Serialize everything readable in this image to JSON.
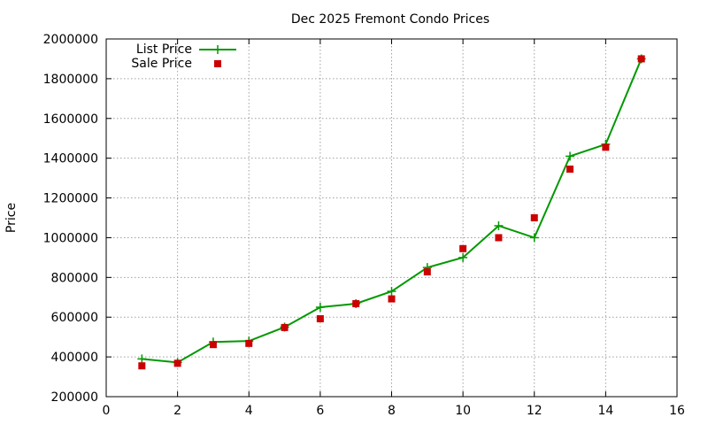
{
  "chart_data": {
    "type": "line",
    "title": "Dec 2025 Fremont Condo Prices",
    "xlabel": "",
    "ylabel": "Price",
    "xlim": [
      0,
      16
    ],
    "ylim": [
      200000,
      2000000
    ],
    "xticks": [
      "0",
      "2",
      "4",
      "6",
      "8",
      "10",
      "12",
      "14",
      "16"
    ],
    "yticks": [
      "200000",
      "400000",
      "600000",
      "800000",
      "1000000",
      "1200000",
      "1400000",
      "1600000",
      "1800000",
      "2000000"
    ],
    "grid": true,
    "legend_position": "top-left",
    "series": [
      {
        "name": "List Price",
        "style": "linespoints",
        "color": "#009900",
        "marker": "plus",
        "x": [
          1,
          2,
          3,
          4,
          5,
          6,
          7,
          8,
          9,
          10,
          11,
          12,
          13,
          14,
          15
        ],
        "values": [
          390000,
          372000,
          475000,
          480000,
          550000,
          650000,
          668000,
          730000,
          850000,
          900000,
          1060000,
          1000000,
          1410000,
          1470000,
          1900000
        ]
      },
      {
        "name": "Sale Price",
        "style": "points",
        "color": "#cc0000",
        "marker": "square",
        "x": [
          1,
          2,
          3,
          4,
          5,
          6,
          7,
          8,
          9,
          10,
          11,
          12,
          13,
          14,
          15
        ],
        "values": [
          355000,
          368000,
          462000,
          468000,
          548000,
          592000,
          668000,
          692000,
          828000,
          945000,
          1000000,
          1100000,
          1345000,
          1455000,
          1900000
        ]
      }
    ]
  }
}
